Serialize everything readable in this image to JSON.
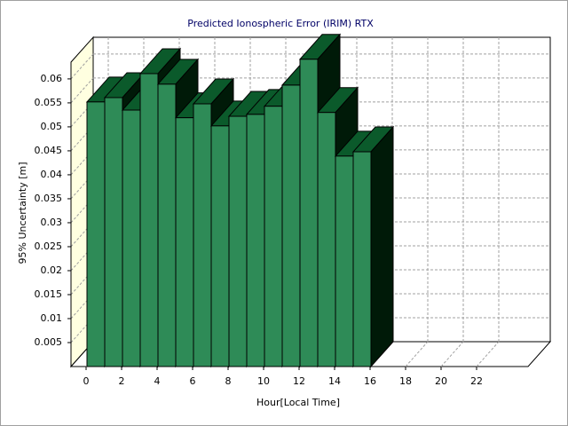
{
  "chart_data": {
    "type": "bar3d",
    "title": "Predicted Ionospheric Error (IRIM) RTX",
    "xlabel": "Hour[Local Time]",
    "ylabel": "95% Uncertainty [m]",
    "x": [
      0,
      1,
      2,
      3,
      4,
      5,
      6,
      7,
      8,
      9,
      10,
      11,
      12,
      13,
      14,
      15
    ],
    "values": [
      0.0552,
      0.0561,
      0.0535,
      0.0611,
      0.0589,
      0.0519,
      0.0548,
      0.0502,
      0.0522,
      0.0526,
      0.0543,
      0.0587,
      0.0641,
      0.053,
      0.0439,
      0.0448
    ],
    "color": "#2e8b57",
    "xlim": [
      -1,
      25
    ],
    "xticks": [
      0,
      2,
      4,
      6,
      8,
      10,
      12,
      14,
      16,
      18,
      20,
      22
    ],
    "ylim": [
      0,
      0.0635
    ],
    "yticks": [
      0.005,
      0.01,
      0.015,
      0.02,
      0.025,
      0.03,
      0.035,
      0.04,
      0.045,
      0.05,
      0.055,
      0.06
    ],
    "grid": true
  }
}
